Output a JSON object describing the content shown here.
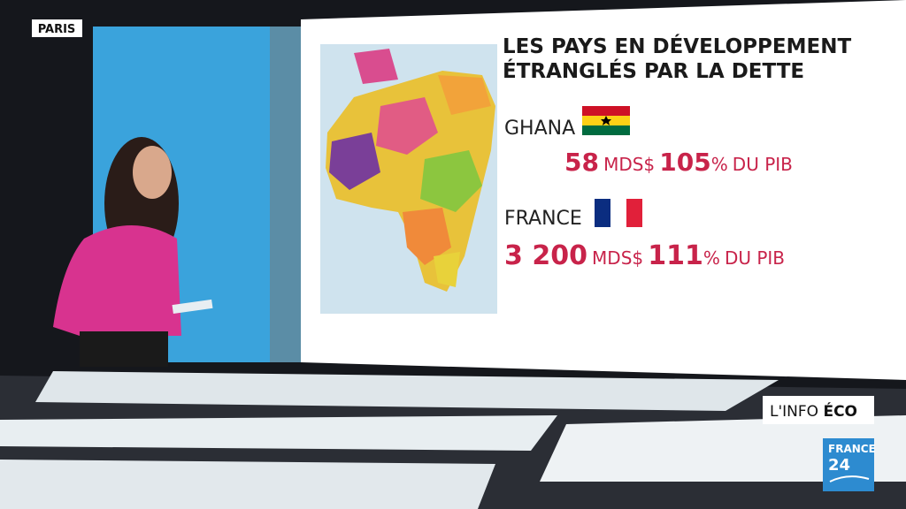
{
  "location": "PARIS",
  "headline": {
    "line1": "LES PAYS EN DÉVELOPPEMENT",
    "line2": "ÉTRANGLÉS PAR LA DETTE"
  },
  "countries": [
    {
      "name": "GHANA",
      "debt": "58",
      "debt_unit": "MDS$",
      "ratio": "105",
      "ratio_unit": "%",
      "ratio_suffix": "DU PIB"
    },
    {
      "name": "FRANCE",
      "debt": "3 200",
      "debt_unit": "MDS$",
      "ratio": "111",
      "ratio_unit": "%",
      "ratio_suffix": "DU PIB"
    }
  ],
  "program": {
    "name": "L'INFO",
    "highlight": "ÉCO"
  },
  "logo": {
    "line1": "FRANCE",
    "line2": "24"
  }
}
